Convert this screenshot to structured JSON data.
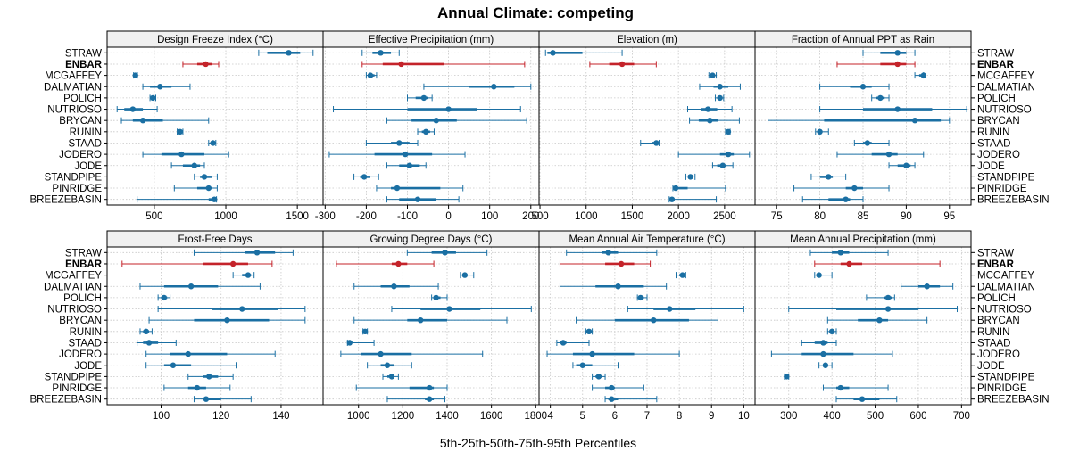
{
  "chart_data": {
    "type": "dot-whisker",
    "title": "Annual Climate: competing",
    "xlabel": "5th-25th-50th-75th-95th Percentiles",
    "sites": [
      "STRAW",
      "ENBAR",
      "MCGAFFEY",
      "DALMATIAN",
      "POLICH",
      "NUTRIOSO",
      "BRYCAN",
      "RUNIN",
      "STAAD",
      "JODERO",
      "JODE",
      "STANDPIPE",
      "PINRIDGE",
      "BREEZEBASIN"
    ],
    "highlight_site": "ENBAR",
    "colors": {
      "normal": "#1a6fa3",
      "highlight": "#c4232a",
      "grid": "#c8c8c8",
      "strip": "#f0f0f0",
      "frame": "#000000"
    },
    "panels": [
      {
        "title": "Design Freeze Index (°C)",
        "xlim": [
          170,
          1680
        ],
        "ticks": [
          500,
          1000,
          1500
        ],
        "tick_labels": [
          "500",
          "1000",
          "1500"
        ],
        "stats": [
          [
            1230,
            1290,
            1440,
            1520,
            1610
          ],
          [
            700,
            800,
            860,
            900,
            950
          ],
          [
            355,
            362,
            368,
            374,
            382
          ],
          [
            420,
            470,
            540,
            620,
            750
          ],
          [
            470,
            480,
            490,
            500,
            510
          ],
          [
            240,
            290,
            350,
            420,
            520
          ],
          [
            270,
            350,
            420,
            560,
            880
          ],
          [
            660,
            670,
            680,
            690,
            700
          ],
          [
            880,
            895,
            910,
            920,
            930
          ],
          [
            420,
            550,
            690,
            850,
            1020
          ],
          [
            620,
            700,
            780,
            820,
            850
          ],
          [
            780,
            820,
            850,
            900,
            940
          ],
          [
            640,
            800,
            880,
            905,
            940
          ],
          [
            380,
            880,
            920,
            925,
            935
          ]
        ]
      },
      {
        "title": "Effective Precipitation (mm)",
        "xlim": [
          -305,
          220
        ],
        "ticks": [
          -300,
          -200,
          -100,
          0,
          100,
          200
        ],
        "tick_labels": [
          "-300",
          "-200",
          "-100",
          "0",
          "100",
          "200"
        ],
        "stats": [
          [
            -210,
            -185,
            -165,
            -140,
            -120
          ],
          [
            -210,
            -160,
            -115,
            -10,
            185
          ],
          [
            -200,
            -195,
            -190,
            -180,
            -175
          ],
          [
            -60,
            50,
            110,
            160,
            200
          ],
          [
            -100,
            -80,
            -60,
            -50,
            -40
          ],
          [
            -280,
            -100,
            0,
            70,
            175
          ],
          [
            -150,
            -90,
            -30,
            20,
            190
          ],
          [
            -75,
            -65,
            -55,
            -45,
            -35
          ],
          [
            -200,
            -140,
            -120,
            -95,
            -75
          ],
          [
            -290,
            -180,
            -105,
            -40,
            40
          ],
          [
            -150,
            -120,
            -95,
            -70,
            -55
          ],
          [
            -230,
            -215,
            -205,
            -190,
            -170
          ],
          [
            -175,
            -140,
            -125,
            -20,
            35
          ],
          [
            -150,
            -120,
            -75,
            -30,
            25
          ]
        ]
      },
      {
        "title": "Elevation (m)",
        "xlim": [
          490,
          2830
        ],
        "ticks": [
          500,
          1000,
          1500,
          2000,
          2500
        ],
        "tick_labels": [
          "500",
          "1000",
          "1500",
          "2000",
          "2500"
        ],
        "stats": [
          [
            560,
            580,
            640,
            960,
            1390
          ],
          [
            1040,
            1250,
            1390,
            1520,
            1760
          ],
          [
            2330,
            2350,
            2370,
            2390,
            2410
          ],
          [
            2230,
            2380,
            2450,
            2540,
            2670
          ],
          [
            2400,
            2420,
            2450,
            2470,
            2490
          ],
          [
            2100,
            2240,
            2320,
            2420,
            2580
          ],
          [
            2120,
            2220,
            2340,
            2430,
            2660
          ],
          [
            2510,
            2525,
            2540,
            2550,
            2560
          ],
          [
            1590,
            1710,
            1760,
            1780,
            1790
          ],
          [
            2000,
            2450,
            2540,
            2600,
            2770
          ],
          [
            2370,
            2420,
            2480,
            2520,
            2590
          ],
          [
            2080,
            2110,
            2130,
            2150,
            2180
          ],
          [
            1940,
            1950,
            1970,
            2100,
            2510
          ],
          [
            1900,
            1910,
            1930,
            1950,
            2410
          ]
        ]
      },
      {
        "title": "Fraction of Annual PPT as Rain",
        "xlim": [
          72.5,
          97.5
        ],
        "ticks": [
          75,
          80,
          85,
          90,
          95
        ],
        "tick_labels": [
          "75",
          "80",
          "85",
          "90",
          "95"
        ],
        "stats": [
          [
            85,
            87,
            89,
            90,
            91
          ],
          [
            82,
            87,
            89,
            90,
            91
          ],
          [
            91,
            91.5,
            92,
            92,
            92
          ],
          [
            80,
            83.5,
            85,
            86,
            88
          ],
          [
            86,
            86.5,
            87,
            87.5,
            88
          ],
          [
            80,
            85,
            89,
            93,
            97
          ],
          [
            74,
            80.5,
            91,
            94,
            95
          ],
          [
            79.5,
            79.7,
            80,
            80.2,
            81
          ],
          [
            84,
            85,
            85.5,
            86,
            88
          ],
          [
            82,
            86,
            88,
            89,
            92
          ],
          [
            88,
            89,
            90,
            90.5,
            91
          ],
          [
            79,
            80,
            81,
            81.5,
            83
          ],
          [
            77,
            83,
            84,
            85,
            88
          ],
          [
            78,
            81,
            83,
            83.5,
            85
          ]
        ]
      },
      {
        "title": "Frost-Free Days",
        "xlim": [
          82,
          154
        ],
        "ticks": [
          100,
          120,
          140
        ],
        "tick_labels": [
          "100",
          "120",
          "140"
        ],
        "stats": [
          [
            111,
            128,
            132,
            138,
            144
          ],
          [
            87,
            114,
            124,
            129,
            137
          ],
          [
            124,
            127,
            129,
            130,
            131
          ],
          [
            93,
            101,
            110,
            119,
            133
          ],
          [
            99,
            100,
            101,
            102,
            103
          ],
          [
            99,
            117,
            127,
            139,
            148
          ],
          [
            96,
            111,
            122,
            136,
            148
          ],
          [
            93,
            94,
            95,
            96,
            97
          ],
          [
            92,
            94,
            96,
            99,
            105
          ],
          [
            95,
            103,
            109,
            122,
            138
          ],
          [
            95,
            101,
            104,
            110,
            125
          ],
          [
            109,
            114,
            116,
            119,
            124
          ],
          [
            101,
            109,
            112,
            115,
            123
          ],
          [
            111,
            114,
            115,
            120,
            130
          ]
        ]
      },
      {
        "title": "Growing Degree Days (°C)",
        "xlim": [
          840,
          1815
        ],
        "ticks": [
          1000,
          1200,
          1400,
          1600,
          1800
        ],
        "tick_labels": [
          "1000",
          "1200",
          "1400",
          "1600",
          "1800"
        ],
        "stats": [
          [
            1220,
            1330,
            1390,
            1440,
            1580
          ],
          [
            900,
            1150,
            1180,
            1220,
            1340
          ],
          [
            1460,
            1470,
            1480,
            1490,
            1520
          ],
          [
            980,
            1100,
            1160,
            1230,
            1360
          ],
          [
            1330,
            1340,
            1350,
            1370,
            1400
          ],
          [
            1150,
            1280,
            1410,
            1550,
            1780
          ],
          [
            980,
            1220,
            1280,
            1400,
            1670
          ],
          [
            1020,
            1025,
            1030,
            1035,
            1040
          ],
          [
            950,
            955,
            960,
            970,
            1070
          ],
          [
            920,
            1010,
            1100,
            1240,
            1560
          ],
          [
            1040,
            1100,
            1130,
            1160,
            1240
          ],
          [
            1110,
            1130,
            1150,
            1160,
            1180
          ],
          [
            990,
            1230,
            1320,
            1340,
            1400
          ],
          [
            1130,
            1300,
            1320,
            1340,
            1390
          ]
        ]
      },
      {
        "title": "Mean Annual Air Temperature (°C)",
        "xlim": [
          3.65,
          10.35
        ],
        "ticks": [
          4,
          5,
          6,
          7,
          8,
          9,
          10
        ],
        "tick_labels": [
          "4",
          "5",
          "6",
          "7",
          "8",
          "9",
          "10"
        ],
        "stats": [
          [
            4.5,
            5.6,
            5.8,
            6.1,
            7.3
          ],
          [
            4.3,
            5.7,
            6.2,
            6.6,
            7.1
          ],
          [
            7.9,
            8.0,
            8.1,
            8.1,
            8.2
          ],
          [
            4.3,
            5.4,
            6.1,
            6.9,
            7.6
          ],
          [
            6.7,
            6.8,
            6.8,
            6.9,
            7.0
          ],
          [
            6.4,
            7.2,
            7.7,
            8.5,
            10.0
          ],
          [
            4.8,
            6.0,
            7.2,
            8.3,
            9.2
          ],
          [
            5.1,
            5.15,
            5.2,
            5.25,
            5.3
          ],
          [
            4.2,
            4.3,
            4.4,
            4.5,
            5.2
          ],
          [
            3.9,
            4.7,
            5.3,
            6.6,
            8.0
          ],
          [
            4.7,
            4.8,
            5.0,
            5.3,
            6.1
          ],
          [
            5.3,
            5.4,
            5.5,
            5.6,
            5.7
          ],
          [
            5.3,
            5.7,
            5.9,
            6.0,
            6.9
          ],
          [
            5.7,
            5.8,
            5.9,
            6.1,
            7.3
          ]
        ]
      },
      {
        "title": "Mean Annual Precipitation (mm)",
        "xlim": [
          222,
          722
        ],
        "ticks": [
          300,
          400,
          500,
          600,
          700
        ],
        "tick_labels": [
          "300",
          "400",
          "500",
          "600",
          "700"
        ],
        "stats": [
          [
            350,
            400,
            420,
            440,
            530
          ],
          [
            360,
            420,
            440,
            470,
            650
          ],
          [
            360,
            365,
            370,
            375,
            400
          ],
          [
            560,
            600,
            620,
            650,
            680
          ],
          [
            480,
            520,
            530,
            540,
            545
          ],
          [
            300,
            410,
            530,
            600,
            690
          ],
          [
            390,
            460,
            510,
            530,
            620
          ],
          [
            390,
            395,
            400,
            405,
            410
          ],
          [
            330,
            360,
            380,
            390,
            410
          ],
          [
            260,
            330,
            380,
            450,
            540
          ],
          [
            370,
            380,
            385,
            390,
            400
          ],
          [
            290,
            292,
            295,
            298,
            300
          ],
          [
            380,
            410,
            420,
            440,
            530
          ],
          [
            410,
            450,
            470,
            510,
            550
          ]
        ]
      }
    ]
  }
}
